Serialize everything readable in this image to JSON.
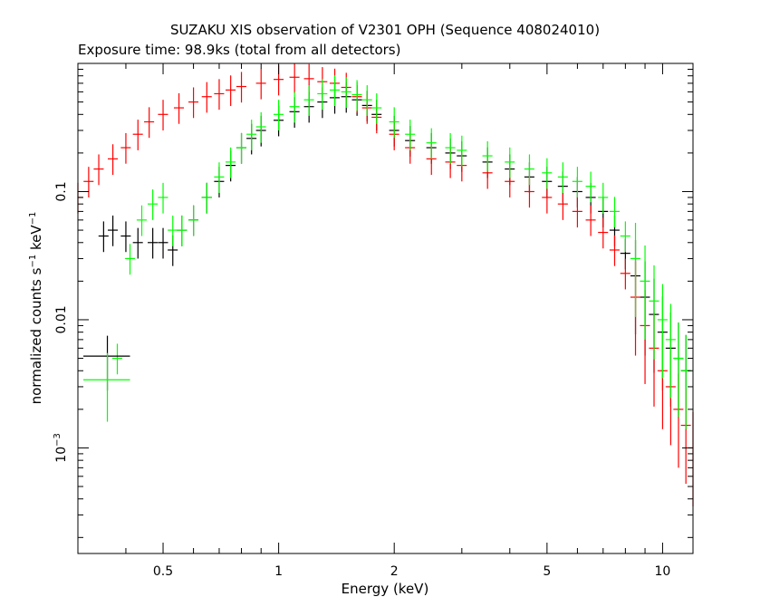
{
  "chart_data": {
    "type": "scatter",
    "title": "SUZAKU XIS observation of V2301 OPH (Sequence 408024010)",
    "subtitle": "Exposure time: 98.9ks (total from all detectors)",
    "xlabel": "Energy (keV)",
    "ylabel": {
      "base": "normalized counts s",
      "sup1": "−1",
      "mid": " keV",
      "sup2": "−1"
    },
    "xscale": "log",
    "yscale": "log",
    "xlim": [
      0.3,
      12
    ],
    "ylim": [
      0.00015,
      1.0
    ],
    "x_ticks": [
      {
        "value": 0.5,
        "label": "0.5"
      },
      {
        "value": 1,
        "label": "1"
      },
      {
        "value": 2,
        "label": "2"
      },
      {
        "value": 5,
        "label": "5"
      },
      {
        "value": 10,
        "label": "10"
      }
    ],
    "y_ticks": [
      {
        "value": 0.1,
        "label": "0.1"
      },
      {
        "value": 0.01,
        "label": "0.01"
      },
      {
        "value": 0.001,
        "label_base": "10",
        "label_sup": "−3"
      }
    ],
    "grid": false,
    "legend": "none",
    "series": [
      {
        "color": "#000000",
        "points": [
          [
            0.35,
            0.045
          ],
          [
            0.37,
            0.05
          ],
          [
            0.4,
            0.045
          ],
          [
            0.43,
            0.04
          ],
          [
            0.47,
            0.04
          ],
          [
            0.5,
            0.04
          ],
          [
            0.53,
            0.035
          ],
          [
            0.56,
            0.05
          ],
          [
            0.6,
            0.06
          ],
          [
            0.65,
            0.09
          ],
          [
            0.7,
            0.12
          ],
          [
            0.75,
            0.16
          ],
          [
            0.8,
            0.22
          ],
          [
            0.85,
            0.26
          ],
          [
            0.9,
            0.3
          ],
          [
            1.0,
            0.36
          ],
          [
            1.1,
            0.42
          ],
          [
            1.2,
            0.46
          ],
          [
            1.3,
            0.5
          ],
          [
            1.4,
            0.54
          ],
          [
            1.5,
            0.55
          ],
          [
            1.6,
            0.52
          ],
          [
            1.7,
            0.47
          ],
          [
            1.8,
            0.4
          ],
          [
            2.0,
            0.3
          ],
          [
            2.2,
            0.25
          ],
          [
            2.5,
            0.22
          ],
          [
            2.8,
            0.2
          ],
          [
            3.0,
            0.19
          ],
          [
            3.5,
            0.17
          ],
          [
            4.0,
            0.15
          ],
          [
            4.5,
            0.13
          ],
          [
            5.0,
            0.12
          ],
          [
            5.5,
            0.11
          ],
          [
            6.0,
            0.1
          ],
          [
            6.5,
            0.09
          ],
          [
            7.0,
            0.07
          ],
          [
            7.5,
            0.05
          ],
          [
            8.0,
            0.033
          ],
          [
            8.5,
            0.022
          ],
          [
            9.0,
            0.015
          ],
          [
            9.5,
            0.011
          ],
          [
            10.0,
            0.008
          ],
          [
            10.5,
            0.006
          ],
          [
            11.0,
            0.005
          ],
          [
            11.5,
            0.004
          ]
        ]
      },
      {
        "color": "#ff0000",
        "points": [
          [
            0.3,
            0.09
          ],
          [
            0.32,
            0.12
          ],
          [
            0.34,
            0.15
          ],
          [
            0.37,
            0.18
          ],
          [
            0.4,
            0.22
          ],
          [
            0.43,
            0.28
          ],
          [
            0.46,
            0.35
          ],
          [
            0.5,
            0.4
          ],
          [
            0.55,
            0.45
          ],
          [
            0.6,
            0.5
          ],
          [
            0.65,
            0.55
          ],
          [
            0.7,
            0.58
          ],
          [
            0.75,
            0.62
          ],
          [
            0.8,
            0.66
          ],
          [
            0.9,
            0.7
          ],
          [
            1.0,
            0.75
          ],
          [
            1.1,
            0.78
          ],
          [
            1.2,
            0.76
          ],
          [
            1.3,
            0.72
          ],
          [
            1.4,
            0.7
          ],
          [
            1.5,
            0.65
          ],
          [
            1.6,
            0.55
          ],
          [
            1.7,
            0.45
          ],
          [
            1.8,
            0.38
          ],
          [
            2.0,
            0.28
          ],
          [
            2.2,
            0.22
          ],
          [
            2.5,
            0.18
          ],
          [
            2.8,
            0.17
          ],
          [
            3.0,
            0.16
          ],
          [
            3.5,
            0.14
          ],
          [
            4.0,
            0.12
          ],
          [
            4.5,
            0.1
          ],
          [
            5.0,
            0.09
          ],
          [
            5.5,
            0.08
          ],
          [
            6.0,
            0.07
          ],
          [
            6.5,
            0.06
          ],
          [
            7.0,
            0.048
          ],
          [
            7.5,
            0.035
          ],
          [
            8.0,
            0.023
          ],
          [
            8.5,
            0.015
          ],
          [
            9.0,
            0.009
          ],
          [
            9.5,
            0.006
          ],
          [
            10.0,
            0.004
          ],
          [
            10.5,
            0.003
          ],
          [
            11.0,
            0.002
          ],
          [
            11.5,
            0.0015
          ],
          [
            12.0,
            0.001
          ]
        ]
      },
      {
        "color": "#00ff00",
        "points": [
          [
            0.38,
            0.005
          ],
          [
            0.41,
            0.03
          ],
          [
            0.44,
            0.06
          ],
          [
            0.47,
            0.08
          ],
          [
            0.5,
            0.09
          ],
          [
            0.53,
            0.05
          ],
          [
            0.56,
            0.05
          ],
          [
            0.6,
            0.06
          ],
          [
            0.65,
            0.09
          ],
          [
            0.7,
            0.13
          ],
          [
            0.75,
            0.17
          ],
          [
            0.8,
            0.22
          ],
          [
            0.85,
            0.28
          ],
          [
            0.9,
            0.32
          ],
          [
            1.0,
            0.4
          ],
          [
            1.1,
            0.46
          ],
          [
            1.2,
            0.52
          ],
          [
            1.3,
            0.58
          ],
          [
            1.4,
            0.62
          ],
          [
            1.5,
            0.6
          ],
          [
            1.6,
            0.57
          ],
          [
            1.7,
            0.52
          ],
          [
            1.8,
            0.45
          ],
          [
            2.0,
            0.35
          ],
          [
            2.2,
            0.28
          ],
          [
            2.5,
            0.24
          ],
          [
            2.8,
            0.22
          ],
          [
            3.0,
            0.21
          ],
          [
            3.5,
            0.19
          ],
          [
            4.0,
            0.17
          ],
          [
            4.5,
            0.15
          ],
          [
            5.0,
            0.14
          ],
          [
            5.5,
            0.13
          ],
          [
            6.0,
            0.12
          ],
          [
            6.5,
            0.11
          ],
          [
            7.0,
            0.09
          ],
          [
            7.5,
            0.07
          ],
          [
            8.0,
            0.045
          ],
          [
            8.5,
            0.03
          ],
          [
            9.0,
            0.02
          ],
          [
            9.5,
            0.014
          ],
          [
            10.0,
            0.01
          ],
          [
            10.5,
            0.007
          ],
          [
            11.0,
            0.005
          ],
          [
            11.5,
            0.004
          ]
        ]
      }
    ],
    "annotations": [
      {
        "color": "#000000",
        "x": 0.358,
        "y": 0.0052,
        "x_low": 0.31,
        "x_high": 0.41,
        "y_low": 0.0028,
        "y_high": 0.0075
      },
      {
        "color": "#00ff00",
        "x": 0.358,
        "y": 0.0034,
        "x_low": 0.31,
        "x_high": 0.41,
        "y_low": 0.0016,
        "y_high": 0.0055
      }
    ]
  }
}
